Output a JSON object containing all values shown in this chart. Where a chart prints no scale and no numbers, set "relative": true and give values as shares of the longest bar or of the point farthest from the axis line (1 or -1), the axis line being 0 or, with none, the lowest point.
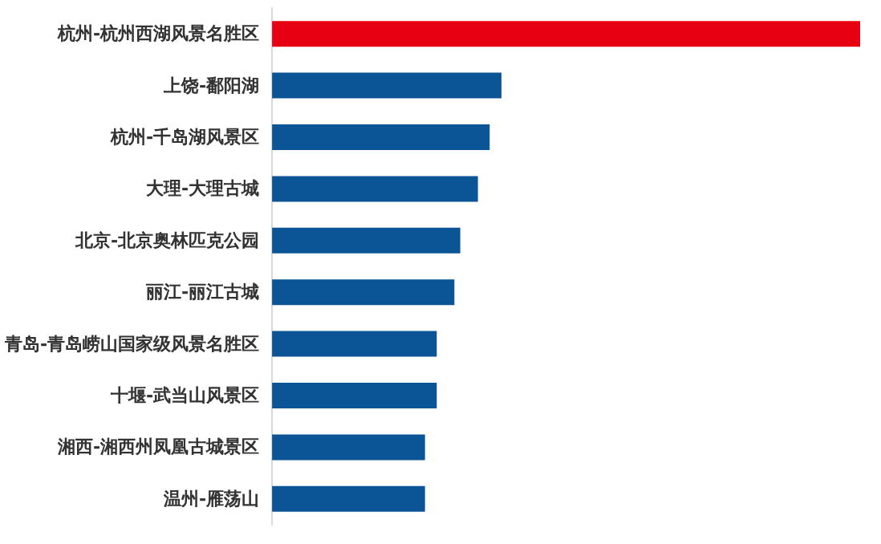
{
  "chart_data": {
    "type": "bar",
    "orientation": "horizontal",
    "relative": true,
    "categories": [
      "杭州-杭州西湖风景名胜区",
      "上饶-鄱阳湖",
      "杭州-千岛湖风景区",
      "大理-大理古城",
      "北京-北京奥林匹克公园",
      "丽江-丽江古城",
      "青岛-青岛崂山国家级风景名胜区",
      "十堰-武当山风景区",
      "湘西-湘西州凤凰古城景区",
      "温州-雁荡山"
    ],
    "values": [
      1,
      0.39,
      0.37,
      0.35,
      0.32,
      0.31,
      0.28,
      0.28,
      0.26,
      0.26
    ],
    "colors": [
      "#e60012",
      "#0b5597",
      "#0b5597",
      "#0b5597",
      "#0b5597",
      "#0b5597",
      "#0b5597",
      "#0b5597",
      "#0b5597",
      "#0b5597"
    ],
    "data_labels": false
  }
}
